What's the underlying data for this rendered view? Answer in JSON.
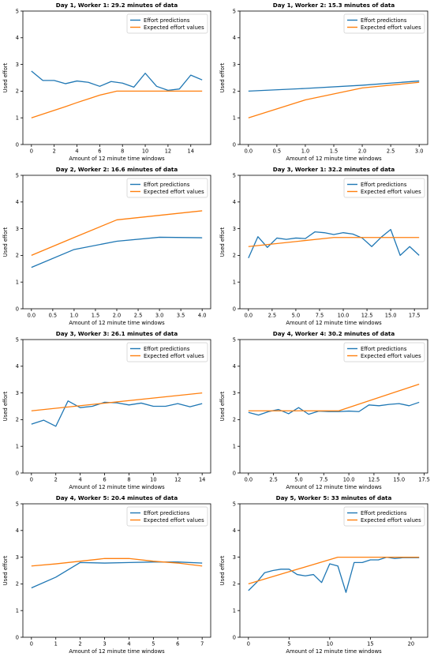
{
  "colors": {
    "predictions": "#1f77b4",
    "expected": "#ff7f0e"
  },
  "chart_data": [
    {
      "type": "line",
      "title": "Day 1, Worker 1: 29.2 minutes of data",
      "xlabel": "Amount of 12 minute time windows",
      "ylabel": "Used effort",
      "ylim": [
        0,
        5
      ],
      "xlim": [
        -0.75,
        15.75
      ],
      "xticks": [
        0,
        2,
        4,
        6,
        8,
        10,
        12,
        14
      ],
      "xtick_labels": [
        "0",
        "2",
        "4",
        "6",
        "8",
        "10",
        "12",
        "14"
      ],
      "yticks": [
        0,
        1,
        2,
        3,
        4,
        5
      ],
      "legend": "top-right",
      "series": [
        {
          "name": "Effort predictions",
          "x": [
            0,
            1,
            2,
            3,
            4,
            5,
            6,
            7,
            8,
            9,
            10,
            11,
            12,
            13,
            14,
            15
          ],
          "values": [
            2.75,
            2.4,
            2.4,
            2.28,
            2.38,
            2.33,
            2.18,
            2.36,
            2.3,
            2.15,
            2.67,
            2.18,
            2.03,
            2.08,
            2.6,
            2.42
          ]
        },
        {
          "name": "Expected effort values",
          "x": [
            0,
            1,
            2,
            3,
            4,
            5,
            6,
            7,
            7.5,
            8,
            9,
            10,
            11,
            12,
            13,
            14,
            15
          ],
          "values": [
            1.0,
            1.14,
            1.28,
            1.42,
            1.57,
            1.71,
            1.85,
            1.95,
            2.0,
            2.0,
            2.0,
            2.0,
            2.0,
            2.0,
            2.0,
            2.0,
            2.0
          ]
        }
      ]
    },
    {
      "type": "line",
      "title": "Day 1, Worker 2: 15.3 minutes of data",
      "xlabel": "Amount of 12 minute time windows",
      "ylabel": "Used effort",
      "ylim": [
        0,
        5
      ],
      "xlim": [
        -0.15,
        3.15
      ],
      "xticks": [
        0,
        0.5,
        1.0,
        1.5,
        2.0,
        2.5,
        3.0
      ],
      "xtick_labels": [
        "0.0",
        "0.5",
        "1.0",
        "1.5",
        "2.0",
        "2.5",
        "3.0"
      ],
      "yticks": [
        0,
        1,
        2,
        3,
        4,
        5
      ],
      "legend": "top-right",
      "series": [
        {
          "name": "Effort predictions",
          "x": [
            0,
            1,
            2,
            3
          ],
          "values": [
            2.0,
            2.1,
            2.22,
            2.38
          ]
        },
        {
          "name": "Expected effort values",
          "x": [
            0,
            1,
            2,
            3
          ],
          "values": [
            1.0,
            1.67,
            2.12,
            2.33
          ]
        }
      ]
    },
    {
      "type": "line",
      "title": "Day 2, Worker 2: 16.6 minutes of data",
      "xlabel": "Amount of 12 minute time windows",
      "ylabel": "Used effort",
      "ylim": [
        0,
        5
      ],
      "xlim": [
        -0.2,
        4.2
      ],
      "xticks": [
        0,
        0.5,
        1.0,
        1.5,
        2.0,
        2.5,
        3.0,
        3.5,
        4.0
      ],
      "xtick_labels": [
        "0.0",
        "0.5",
        "1.0",
        "1.5",
        "2.0",
        "2.5",
        "3.0",
        "3.5",
        "4.0"
      ],
      "yticks": [
        0,
        1,
        2,
        3,
        4,
        5
      ],
      "legend": "top-right",
      "series": [
        {
          "name": "Effort predictions",
          "x": [
            0,
            1,
            2,
            3,
            4
          ],
          "values": [
            1.55,
            2.22,
            2.53,
            2.68,
            2.66
          ]
        },
        {
          "name": "Expected effort values",
          "x": [
            0,
            1,
            2,
            3,
            4
          ],
          "values": [
            2.0,
            2.67,
            3.33,
            3.5,
            3.67
          ]
        }
      ]
    },
    {
      "type": "line",
      "title": "Day 3, Worker 1: 32.2 minutes of data",
      "xlabel": "Amount of 12 minute time windows",
      "ylabel": "Used effort",
      "ylim": [
        0,
        5
      ],
      "xlim": [
        -0.9,
        18.9
      ],
      "xticks": [
        0,
        2.5,
        5.0,
        7.5,
        10.0,
        12.5,
        15.0,
        17.5
      ],
      "xtick_labels": [
        "0.0",
        "2.5",
        "5.0",
        "7.5",
        "10.0",
        "12.5",
        "15.0",
        "17.5"
      ],
      "yticks": [
        0,
        1,
        2,
        3,
        4,
        5
      ],
      "legend": "top-right",
      "series": [
        {
          "name": "Effort predictions",
          "x": [
            0,
            1,
            2,
            3,
            4,
            5,
            6,
            7,
            8,
            9,
            10,
            11,
            12,
            13,
            14,
            15,
            16,
            17,
            18
          ],
          "values": [
            1.9,
            2.7,
            2.3,
            2.65,
            2.6,
            2.65,
            2.63,
            2.88,
            2.85,
            2.78,
            2.85,
            2.8,
            2.65,
            2.33,
            2.68,
            2.97,
            2.0,
            2.33,
            2.0
          ]
        },
        {
          "name": "Expected effort values",
          "x": [
            0,
            9,
            18
          ],
          "values": [
            2.33,
            2.67,
            2.67
          ]
        }
      ]
    },
    {
      "type": "line",
      "title": "Day 3, Worker 3: 26.1 minutes of data",
      "xlabel": "Amount of 12 minute time windows",
      "ylabel": "Used effort",
      "ylim": [
        0,
        5
      ],
      "xlim": [
        -0.7,
        14.7
      ],
      "xticks": [
        0,
        2,
        4,
        6,
        8,
        10,
        12,
        14
      ],
      "xtick_labels": [
        "0",
        "2",
        "4",
        "6",
        "8",
        "10",
        "12",
        "14"
      ],
      "yticks": [
        0,
        1,
        2,
        3,
        4,
        5
      ],
      "legend": "top-right",
      "series": [
        {
          "name": "Effort predictions",
          "x": [
            0,
            1,
            2,
            3,
            4,
            5,
            6,
            7,
            8,
            9,
            10,
            11,
            12,
            13,
            14
          ],
          "values": [
            1.83,
            1.98,
            1.75,
            2.7,
            2.45,
            2.5,
            2.65,
            2.63,
            2.55,
            2.62,
            2.5,
            2.5,
            2.6,
            2.48,
            2.6
          ]
        },
        {
          "name": "Expected effort values",
          "x": [
            0,
            14
          ],
          "values": [
            2.33,
            3.0
          ]
        }
      ]
    },
    {
      "type": "line",
      "title": "Day 4, Worker 4: 30.2 minutes of data",
      "xlabel": "Amount of 12 minute time windows",
      "ylabel": "Used effort",
      "ylim": [
        0,
        5
      ],
      "xlim": [
        -0.85,
        17.85
      ],
      "xticks": [
        0,
        2.5,
        5.0,
        7.5,
        10.0,
        12.5,
        15.0,
        17.5
      ],
      "xtick_labels": [
        "0.0",
        "2.5",
        "5.0",
        "7.5",
        "10.0",
        "12.5",
        "15.0",
        "17.5"
      ],
      "yticks": [
        0,
        1,
        2,
        3,
        4,
        5
      ],
      "legend": "top-right",
      "series": [
        {
          "name": "Effort predictions",
          "x": [
            0,
            1,
            2,
            3,
            4,
            5,
            6,
            7,
            8,
            9,
            10,
            11,
            12,
            13,
            14,
            15,
            16,
            17
          ],
          "values": [
            2.27,
            2.17,
            2.3,
            2.38,
            2.22,
            2.45,
            2.2,
            2.32,
            2.3,
            2.3,
            2.32,
            2.3,
            2.55,
            2.52,
            2.57,
            2.6,
            2.52,
            2.65
          ]
        },
        {
          "name": "Expected effort values",
          "x": [
            0,
            9,
            17
          ],
          "values": [
            2.33,
            2.33,
            3.33
          ]
        }
      ]
    },
    {
      "type": "line",
      "title": "Day 4, Worker 5: 20.4 minutes of data",
      "xlabel": "Amount of 12 minute time windows",
      "ylabel": "Used effort",
      "ylim": [
        0,
        5
      ],
      "xlim": [
        -0.35,
        7.35
      ],
      "xticks": [
        0,
        1,
        2,
        3,
        4,
        5,
        6,
        7
      ],
      "xtick_labels": [
        "0",
        "1",
        "2",
        "3",
        "4",
        "5",
        "6",
        "7"
      ],
      "yticks": [
        0,
        1,
        2,
        3,
        4,
        5
      ],
      "legend": "top-right",
      "series": [
        {
          "name": "Effort predictions",
          "x": [
            0,
            1,
            2,
            3,
            4,
            5,
            6,
            7
          ],
          "values": [
            1.85,
            2.25,
            2.8,
            2.78,
            2.8,
            2.82,
            2.82,
            2.78
          ]
        },
        {
          "name": "Expected effort values",
          "x": [
            0,
            1,
            2,
            3,
            4,
            5,
            6,
            7
          ],
          "values": [
            2.67,
            2.75,
            2.85,
            2.95,
            2.95,
            2.85,
            2.78,
            2.67
          ]
        }
      ]
    },
    {
      "type": "line",
      "title": "Day 5, Worker 5: 33 minutes of data",
      "xlabel": "Amount of 12 minute time windows",
      "ylabel": "Used effort",
      "ylim": [
        0,
        5
      ],
      "xlim": [
        -1.05,
        22.05
      ],
      "xticks": [
        0,
        5,
        10,
        15,
        20
      ],
      "xtick_labels": [
        "0",
        "5",
        "10",
        "15",
        "20"
      ],
      "yticks": [
        0,
        1,
        2,
        3,
        4,
        5
      ],
      "legend": "top-right",
      "series": [
        {
          "name": "Effort predictions",
          "x": [
            0,
            1,
            2,
            3,
            4,
            5,
            6,
            7,
            8,
            9,
            10,
            11,
            12,
            13,
            14,
            15,
            16,
            17,
            18,
            19,
            20,
            21
          ],
          "values": [
            1.75,
            2.05,
            2.42,
            2.5,
            2.55,
            2.55,
            2.35,
            2.3,
            2.35,
            2.05,
            2.75,
            2.67,
            1.68,
            2.8,
            2.8,
            2.9,
            2.9,
            3.0,
            2.95,
            2.98,
            2.98,
            2.98
          ]
        },
        {
          "name": "Expected effort values",
          "x": [
            0,
            11,
            21
          ],
          "values": [
            2.0,
            3.0,
            3.0
          ]
        }
      ]
    }
  ]
}
